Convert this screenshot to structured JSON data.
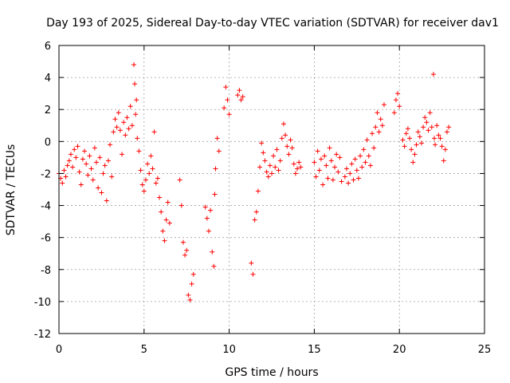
{
  "chart_data": {
    "type": "scatter",
    "title": "Day 193 of 2025, Sidereal Day-to-day VTEC variation (SDTVAR) for receiver dav1",
    "xlabel": "GPS time / hours",
    "ylabel": "SDTVAR / TECUs",
    "xlim": [
      0,
      25
    ],
    "ylim": [
      -12,
      6
    ],
    "xticks": [
      0,
      5,
      10,
      15,
      20,
      25
    ],
    "yticks": [
      -12,
      -10,
      -8,
      -6,
      -4,
      -2,
      0,
      2,
      4,
      6
    ],
    "grid": true,
    "marker": "+",
    "color": "#ff0000",
    "series": [
      {
        "name": "SDTVAR",
        "points": [
          [
            0.0,
            -2.0
          ],
          [
            0.1,
            -2.3
          ],
          [
            0.2,
            -2.6
          ],
          [
            0.3,
            -1.8
          ],
          [
            0.4,
            -2.2
          ],
          [
            0.5,
            -1.5
          ],
          [
            0.6,
            -1.2
          ],
          [
            0.7,
            -0.8
          ],
          [
            0.8,
            -1.6
          ],
          [
            0.9,
            -0.5
          ],
          [
            1.0,
            -1.0
          ],
          [
            1.1,
            -0.3
          ],
          [
            1.2,
            -1.9
          ],
          [
            1.3,
            -2.7
          ],
          [
            1.4,
            -1.1
          ],
          [
            1.5,
            -0.6
          ],
          [
            1.6,
            -1.4
          ],
          [
            1.7,
            -2.1
          ],
          [
            1.8,
            -0.9
          ],
          [
            1.9,
            -1.7
          ],
          [
            2.0,
            -2.4
          ],
          [
            2.1,
            -0.4
          ],
          [
            2.2,
            -1.3
          ],
          [
            2.3,
            -2.9
          ],
          [
            2.4,
            -1.0
          ],
          [
            2.5,
            -3.2
          ],
          [
            2.6,
            -2.0
          ],
          [
            2.7,
            -1.5
          ],
          [
            2.8,
            -3.7
          ],
          [
            2.9,
            -1.2
          ],
          [
            3.0,
            -0.2
          ],
          [
            3.1,
            -2.2
          ],
          [
            3.2,
            0.6
          ],
          [
            3.3,
            1.4
          ],
          [
            3.4,
            0.9
          ],
          [
            3.5,
            1.8
          ],
          [
            3.6,
            0.7
          ],
          [
            3.7,
            -0.8
          ],
          [
            3.8,
            1.2
          ],
          [
            3.9,
            0.4
          ],
          [
            4.0,
            1.5
          ],
          [
            4.1,
            0.8
          ],
          [
            4.2,
            2.2
          ],
          [
            4.3,
            1.0
          ],
          [
            4.4,
            4.8
          ],
          [
            4.45,
            3.6
          ],
          [
            4.5,
            1.7
          ],
          [
            4.55,
            2.6
          ],
          [
            4.6,
            0.2
          ],
          [
            4.7,
            -0.6
          ],
          [
            4.8,
            -1.8
          ],
          [
            4.9,
            -2.7
          ],
          [
            5.0,
            -3.1
          ],
          [
            5.1,
            -2.4
          ],
          [
            5.2,
            -1.4
          ],
          [
            5.3,
            -2.0
          ],
          [
            5.4,
            -0.9
          ],
          [
            5.5,
            -1.7
          ],
          [
            5.6,
            0.6
          ],
          [
            5.7,
            -2.6
          ],
          [
            5.8,
            -2.3
          ],
          [
            5.9,
            -3.5
          ],
          [
            6.0,
            -4.4
          ],
          [
            6.1,
            -5.6
          ],
          [
            6.2,
            -6.2
          ],
          [
            6.3,
            -4.9
          ],
          [
            6.4,
            -3.8
          ],
          [
            6.5,
            -5.1
          ],
          [
            7.1,
            -2.4
          ],
          [
            7.2,
            -4.0
          ],
          [
            7.3,
            -6.3
          ],
          [
            7.4,
            -7.1
          ],
          [
            7.5,
            -6.8
          ],
          [
            7.6,
            -9.6
          ],
          [
            7.7,
            -9.9
          ],
          [
            7.8,
            -8.9
          ],
          [
            7.9,
            -8.3
          ],
          [
            8.6,
            -4.1
          ],
          [
            8.7,
            -4.8
          ],
          [
            8.8,
            -5.6
          ],
          [
            8.9,
            -4.3
          ],
          [
            9.0,
            -6.9
          ],
          [
            9.1,
            -7.8
          ],
          [
            9.15,
            -3.3
          ],
          [
            9.2,
            -1.7
          ],
          [
            9.3,
            0.2
          ],
          [
            9.4,
            -0.6
          ],
          [
            9.7,
            2.1
          ],
          [
            9.8,
            3.4
          ],
          [
            9.9,
            2.6
          ],
          [
            10.0,
            1.7
          ],
          [
            10.5,
            2.9
          ],
          [
            10.6,
            3.2
          ],
          [
            10.7,
            2.6
          ],
          [
            10.8,
            2.8
          ],
          [
            11.3,
            -7.6
          ],
          [
            11.4,
            -8.3
          ],
          [
            11.5,
            -4.9
          ],
          [
            11.6,
            -4.4
          ],
          [
            11.7,
            -3.1
          ],
          [
            11.8,
            -1.6
          ],
          [
            11.9,
            -0.1
          ],
          [
            12.0,
            -0.7
          ],
          [
            12.1,
            -1.2
          ],
          [
            12.2,
            -1.9
          ],
          [
            12.3,
            -2.2
          ],
          [
            12.4,
            -1.5
          ],
          [
            12.5,
            -2.0
          ],
          [
            12.6,
            -0.9
          ],
          [
            12.7,
            -1.6
          ],
          [
            12.8,
            -0.5
          ],
          [
            12.9,
            -1.8
          ],
          [
            13.0,
            -1.2
          ],
          [
            13.1,
            0.2
          ],
          [
            13.2,
            1.1
          ],
          [
            13.3,
            0.4
          ],
          [
            13.4,
            -0.3
          ],
          [
            13.5,
            -0.8
          ],
          [
            13.6,
            0.1
          ],
          [
            13.7,
            -0.4
          ],
          [
            13.8,
            -1.4
          ],
          [
            13.9,
            -2.0
          ],
          [
            14.0,
            -1.7
          ],
          [
            14.1,
            -1.3
          ],
          [
            14.2,
            -1.6
          ],
          [
            15.0,
            -1.3
          ],
          [
            15.1,
            -2.2
          ],
          [
            15.2,
            -0.6
          ],
          [
            15.3,
            -1.8
          ],
          [
            15.4,
            -1.1
          ],
          [
            15.5,
            -2.7
          ],
          [
            15.6,
            -0.9
          ],
          [
            15.7,
            -1.5
          ],
          [
            15.8,
            -2.3
          ],
          [
            15.9,
            -0.4
          ],
          [
            16.0,
            -1.2
          ],
          [
            16.1,
            -2.4
          ],
          [
            16.2,
            -1.6
          ],
          [
            16.3,
            -0.8
          ],
          [
            16.4,
            -1.9
          ],
          [
            16.5,
            -1.0
          ],
          [
            16.6,
            -2.5
          ],
          [
            16.8,
            -2.2
          ],
          [
            16.9,
            -1.7
          ],
          [
            17.0,
            -2.6
          ],
          [
            17.1,
            -2.0
          ],
          [
            17.2,
            -1.4
          ],
          [
            17.3,
            -2.4
          ],
          [
            17.4,
            -1.1
          ],
          [
            17.5,
            -1.8
          ],
          [
            17.6,
            -2.3
          ],
          [
            17.7,
            -0.9
          ],
          [
            17.8,
            -1.6
          ],
          [
            17.9,
            -0.5
          ],
          [
            18.0,
            -1.3
          ],
          [
            18.1,
            0.1
          ],
          [
            18.2,
            -0.9
          ],
          [
            18.3,
            -1.5
          ],
          [
            18.4,
            0.5
          ],
          [
            18.5,
            -0.4
          ],
          [
            18.6,
            0.9
          ],
          [
            18.7,
            1.8
          ],
          [
            18.8,
            0.6
          ],
          [
            18.9,
            1.4
          ],
          [
            19.0,
            1.0
          ],
          [
            19.1,
            2.3
          ],
          [
            19.7,
            1.8
          ],
          [
            19.8,
            2.6
          ],
          [
            19.9,
            3.0
          ],
          [
            20.0,
            2.2
          ],
          [
            20.2,
            0.1
          ],
          [
            20.3,
            -0.3
          ],
          [
            20.4,
            0.5
          ],
          [
            20.5,
            0.8
          ],
          [
            20.6,
            0.2
          ],
          [
            20.7,
            -0.5
          ],
          [
            20.8,
            -1.3
          ],
          [
            20.9,
            -0.8
          ],
          [
            21.0,
            -0.2
          ],
          [
            21.1,
            0.6
          ],
          [
            21.2,
            0.3
          ],
          [
            21.3,
            -0.1
          ],
          [
            21.4,
            0.9
          ],
          [
            21.5,
            1.5
          ],
          [
            21.6,
            1.2
          ],
          [
            21.7,
            0.7
          ],
          [
            21.8,
            1.8
          ],
          [
            21.9,
            0.9
          ],
          [
            22.0,
            4.2
          ],
          [
            22.05,
            0.2
          ],
          [
            22.1,
            -0.2
          ],
          [
            22.2,
            1.0
          ],
          [
            22.3,
            0.4
          ],
          [
            22.4,
            0.2
          ],
          [
            22.5,
            -0.3
          ],
          [
            22.6,
            -1.2
          ],
          [
            22.7,
            -0.5
          ],
          [
            22.8,
            0.6
          ],
          [
            22.9,
            0.9
          ]
        ]
      }
    ]
  }
}
